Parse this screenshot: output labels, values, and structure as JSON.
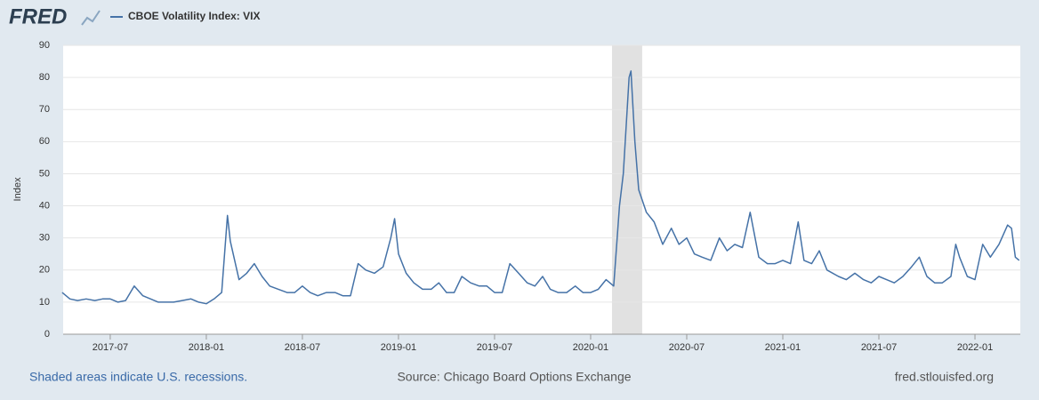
{
  "logo": "FRED",
  "chart_data": {
    "type": "line",
    "series": [
      {
        "name": "CBOE Volatility Index: VIX",
        "color": "#4572a7",
        "x": [
          2017.25,
          2017.29,
          2017.33,
          2017.375,
          2017.42,
          2017.46,
          2017.5,
          2017.54,
          2017.58,
          2017.625,
          2017.67,
          2017.71,
          2017.75,
          2017.79,
          2017.83,
          2017.875,
          2017.92,
          2017.96,
          2018.0,
          2018.04,
          2018.08,
          2018.11,
          2018.125,
          2018.17,
          2018.21,
          2018.25,
          2018.29,
          2018.33,
          2018.375,
          2018.42,
          2018.46,
          2018.5,
          2018.54,
          2018.58,
          2018.625,
          2018.67,
          2018.71,
          2018.75,
          2018.79,
          2018.83,
          2018.875,
          2018.92,
          2018.96,
          2018.98,
          2019.0,
          2019.04,
          2019.08,
          2019.125,
          2019.17,
          2019.21,
          2019.25,
          2019.29,
          2019.33,
          2019.375,
          2019.42,
          2019.46,
          2019.5,
          2019.54,
          2019.58,
          2019.625,
          2019.67,
          2019.71,
          2019.75,
          2019.79,
          2019.83,
          2019.875,
          2019.92,
          2019.96,
          2020.0,
          2020.04,
          2020.08,
          2020.12,
          2020.15,
          2020.17,
          2020.2,
          2020.21,
          2020.23,
          2020.25,
          2020.29,
          2020.33,
          2020.375,
          2020.42,
          2020.46,
          2020.5,
          2020.54,
          2020.58,
          2020.625,
          2020.67,
          2020.71,
          2020.75,
          2020.79,
          2020.83,
          2020.875,
          2020.92,
          2020.96,
          2021.0,
          2021.04,
          2021.08,
          2021.11,
          2021.15,
          2021.19,
          2021.23,
          2021.29,
          2021.33,
          2021.375,
          2021.42,
          2021.46,
          2021.5,
          2021.54,
          2021.58,
          2021.625,
          2021.67,
          2021.71,
          2021.75,
          2021.79,
          2021.83,
          2021.875,
          2021.9,
          2021.92,
          2021.96,
          2022.0,
          2022.04,
          2022.08,
          2022.125,
          2022.17,
          2022.19,
          2022.21,
          2022.23
        ],
        "values": [
          13,
          11,
          10.5,
          11,
          10.5,
          11,
          11,
          10,
          10.5,
          15,
          12,
          11,
          10,
          10,
          10,
          10.5,
          11,
          10,
          9.5,
          11,
          13,
          37,
          29,
          17,
          19,
          22,
          18,
          15,
          14,
          13,
          13,
          15,
          13,
          12,
          13,
          13,
          12,
          12,
          22,
          20,
          19,
          21,
          30,
          36,
          25,
          19,
          16,
          14,
          14,
          16,
          13,
          13,
          18,
          16,
          15,
          15,
          13,
          13,
          22,
          19,
          16,
          15,
          18,
          14,
          13,
          13,
          15,
          13,
          13,
          14,
          17,
          15,
          40,
          50,
          80,
          82,
          60,
          45,
          38,
          35,
          28,
          33,
          28,
          30,
          25,
          24,
          23,
          30,
          26,
          28,
          27,
          38,
          24,
          22,
          22,
          23,
          22,
          35,
          23,
          22,
          26,
          20,
          18,
          17,
          19,
          17,
          16,
          18,
          17,
          16,
          18,
          21,
          24,
          18,
          16,
          16,
          18,
          28,
          24,
          18,
          17,
          28,
          24,
          28,
          34,
          33,
          24,
          23
        ]
      }
    ],
    "xlim": [
      2017.255,
      2022.236
    ],
    "xticks": [
      {
        "value": 2017.5,
        "label": "2017-07"
      },
      {
        "value": 2018.0,
        "label": "2018-01"
      },
      {
        "value": 2018.5,
        "label": "2018-07"
      },
      {
        "value": 2019.0,
        "label": "2019-01"
      },
      {
        "value": 2019.5,
        "label": "2019-07"
      },
      {
        "value": 2020.0,
        "label": "2020-01"
      },
      {
        "value": 2020.5,
        "label": "2020-07"
      },
      {
        "value": 2021.0,
        "label": "2021-01"
      },
      {
        "value": 2021.5,
        "label": "2021-07"
      },
      {
        "value": 2022.0,
        "label": "2022-01"
      }
    ],
    "ylim": [
      0,
      90
    ],
    "yticks": [
      0,
      10,
      20,
      30,
      40,
      50,
      60,
      70,
      80,
      90
    ],
    "y_label": "Index",
    "grid": true,
    "recessions": [
      [
        2020.111,
        2020.268
      ]
    ]
  },
  "footer": {
    "note": "Shaded areas indicate U.S. recessions.",
    "source": "Source: Chicago Board Options Exchange",
    "site": "fred.stlouisfed.org"
  }
}
